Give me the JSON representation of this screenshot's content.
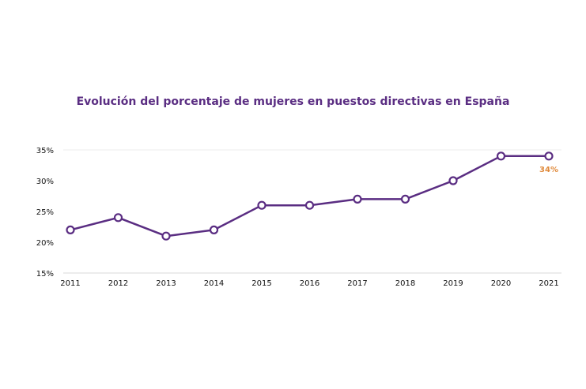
{
  "chart_data": {
    "type": "line",
    "title": "Evolución del porcentaje de mujeres en puestos directivas en España",
    "xlabel": "",
    "ylabel": "",
    "categories": [
      "2011",
      "2012",
      "2013",
      "2014",
      "2015",
      "2016",
      "2017",
      "2018",
      "2019",
      "2020",
      "2021"
    ],
    "series": [
      {
        "values": [
          22,
          24,
          21,
          22,
          26,
          26,
          27,
          27,
          30,
          34,
          34
        ]
      }
    ],
    "ylim": [
      15,
      35
    ],
    "yticks": [
      15,
      20,
      25,
      30,
      35
    ],
    "ytick_labels": [
      "15%",
      "20%",
      "25%",
      "30%",
      "35%"
    ],
    "annotations": [
      {
        "category": "2021",
        "text": "34%"
      }
    ],
    "grid": false,
    "colors": {
      "line": "#5a2d82",
      "marker_fill": "#ffffff",
      "title": "#5a2d82",
      "annotation": "#e08a3c",
      "axis": "#d8d8d8"
    }
  }
}
